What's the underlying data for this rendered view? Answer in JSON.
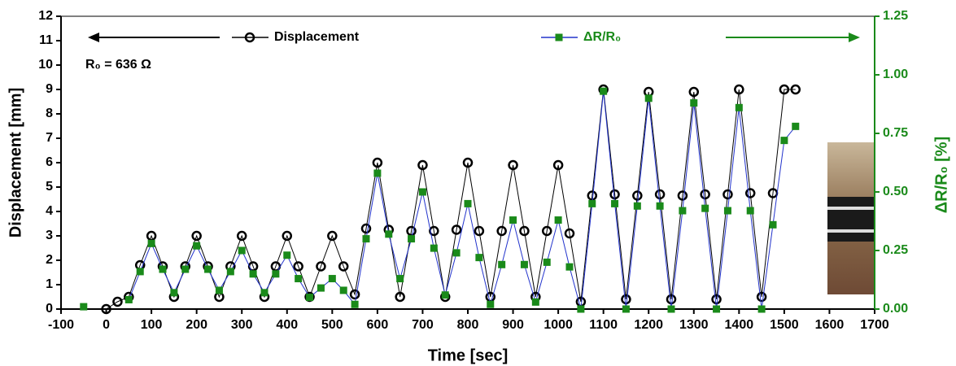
{
  "chart_data": {
    "type": "line",
    "annotation": "R₀ = 636 Ω",
    "xlabel": "Time [sec]",
    "ylabel": "Displacement [mm]",
    "y2label": "ΔR/R₀ [%]",
    "x": [
      -50,
      -25,
      0,
      25,
      50,
      75,
      100,
      125,
      150,
      175,
      200,
      225,
      250,
      275,
      300,
      325,
      350,
      375,
      400,
      425,
      450,
      475,
      500,
      525,
      550,
      575,
      600,
      625,
      650,
      675,
      700,
      725,
      750,
      775,
      800,
      825,
      850,
      875,
      900,
      925,
      950,
      975,
      1000,
      1025,
      1050,
      1075,
      1100,
      1125,
      1150,
      1175,
      1200,
      1225,
      1250,
      1275,
      1300,
      1325,
      1350,
      1375,
      1400,
      1425,
      1450,
      1475,
      1500,
      1525
    ],
    "series": [
      {
        "name": "Displacement",
        "color": "#000000",
        "line_color": "#000000",
        "marker": "circle",
        "axis": "y",
        "values": [
          null,
          null,
          0,
          0.3,
          0.5,
          1.8,
          3,
          1.75,
          0.5,
          1.75,
          3,
          1.75,
          0.5,
          1.75,
          3,
          1.75,
          0.5,
          1.75,
          3,
          1.75,
          0.5,
          1.75,
          3,
          1.75,
          0.6,
          3.3,
          6,
          3.25,
          0.5,
          3.2,
          5.9,
          3.2,
          0.5,
          3.25,
          6,
          3.2,
          0.5,
          3.2,
          5.9,
          3.2,
          0.5,
          3.2,
          5.9,
          3.1,
          0.3,
          4.65,
          9,
          4.7,
          0.4,
          4.65,
          8.9,
          4.7,
          0.4,
          4.65,
          8.9,
          4.7,
          0.4,
          4.7,
          9,
          4.75,
          0.5,
          4.75,
          9,
          9
        ]
      },
      {
        "name": "ΔR/R₀",
        "color": "#1a8a1a",
        "line_color": "#2233cc",
        "marker": "square",
        "axis": "y2",
        "values": [
          0.01,
          null,
          null,
          null,
          0.04,
          0.16,
          0.28,
          0.17,
          0.07,
          0.17,
          0.27,
          0.17,
          0.08,
          0.16,
          0.25,
          0.15,
          0.07,
          0.15,
          0.23,
          0.13,
          0.05,
          0.09,
          0.13,
          0.08,
          0.02,
          0.3,
          0.58,
          0.32,
          0.13,
          0.3,
          0.5,
          0.26,
          0.06,
          0.24,
          0.45,
          0.22,
          0.02,
          0.19,
          0.38,
          0.19,
          0.03,
          0.2,
          0.38,
          0.18,
          0.0,
          0.45,
          0.93,
          0.45,
          0.0,
          0.44,
          0.9,
          0.44,
          0.0,
          0.42,
          0.88,
          0.43,
          0.0,
          0.42,
          0.86,
          0.42,
          0.0,
          0.36,
          0.72,
          0.78
        ]
      }
    ],
    "xlim": [
      -100,
      1700
    ],
    "xticks": [
      -100,
      0,
      100,
      200,
      300,
      400,
      500,
      600,
      700,
      800,
      900,
      1000,
      1100,
      1200,
      1300,
      1400,
      1500,
      1600,
      1700
    ],
    "ylim": [
      0,
      12
    ],
    "yticks": [
      0,
      1,
      2,
      3,
      4,
      5,
      6,
      7,
      8,
      9,
      10,
      11,
      12
    ],
    "y2lim": [
      0,
      1.25
    ],
    "y2ticks": [
      {
        "value": 0,
        "label": "0.00"
      },
      {
        "value": 0.25,
        "label": "0.25"
      },
      {
        "value": 0.5,
        "label": "0.50"
      },
      {
        "value": 0.75,
        "label": "0.75"
      },
      {
        "value": 1,
        "label": "1.00"
      },
      {
        "value": 1.25,
        "label": "1.25"
      }
    ]
  }
}
